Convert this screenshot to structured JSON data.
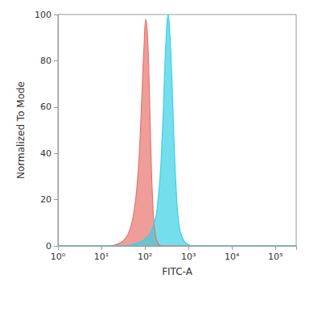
{
  "chart_data": {
    "type": "area",
    "x_label": "FITC-A",
    "y_label": "Normalized To Mode",
    "log": "x",
    "grid": false,
    "xlim": [
      1,
      300000
    ],
    "xticks": [
      {
        "value": 1,
        "label": "10⁰"
      },
      {
        "value": 10,
        "label": "10¹"
      },
      {
        "value": 100,
        "label": "10²"
      },
      {
        "value": 1000,
        "label": "10³"
      },
      {
        "value": 10000,
        "label": "10⁴"
      },
      {
        "value": 100000,
        "label": "10⁵"
      }
    ],
    "ylim": [
      0,
      100
    ],
    "yticks": [
      0,
      20,
      40,
      60,
      80,
      100
    ],
    "series": [
      {
        "color": "#e8736c",
        "x": [
          1,
          15,
          25,
          35,
          45,
          55,
          65,
          75,
          85,
          95,
          105,
          115,
          125,
          135,
          150,
          170,
          200,
          250,
          300000
        ],
        "values": [
          0,
          0,
          1,
          3,
          7,
          14,
          25,
          42,
          65,
          86,
          98,
          90,
          70,
          45,
          20,
          6,
          1,
          0,
          0
        ]
      },
      {
        "color": "#3ad0e6",
        "x": [
          1,
          30,
          60,
          100,
          150,
          200,
          250,
          290,
          320,
          340,
          370,
          410,
          460,
          520,
          600,
          750,
          1000,
          1300,
          300000
        ],
        "values": [
          0,
          0,
          1,
          3,
          8,
          20,
          48,
          80,
          96,
          100,
          93,
          75,
          48,
          25,
          10,
          3,
          0.5,
          0,
          0
        ]
      }
    ]
  }
}
